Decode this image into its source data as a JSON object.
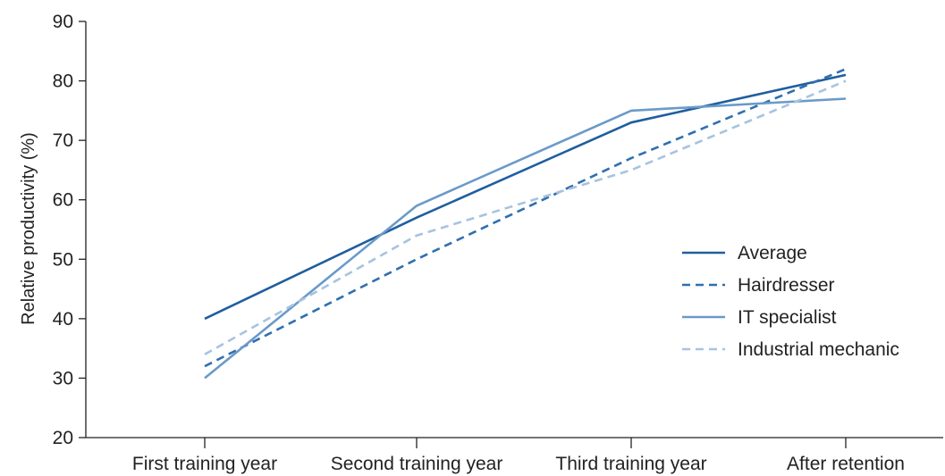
{
  "chart_data": {
    "type": "line",
    "title": "",
    "xlabel": "",
    "ylabel": "Relative productivity (%)",
    "ylim": [
      20,
      90
    ],
    "yticks": [
      20,
      30,
      40,
      50,
      60,
      70,
      80,
      90
    ],
    "categories": [
      "First training year",
      "Second training year",
      "Third training year",
      "After retention"
    ],
    "grid": false,
    "legend_position": "right",
    "series": [
      {
        "name": "Average",
        "values": [
          40,
          57,
          73,
          81
        ],
        "color": "#1f5e9e",
        "dash": "solid"
      },
      {
        "name": "Hairdresser",
        "values": [
          32,
          50,
          67,
          82
        ],
        "color": "#2f6fb0",
        "dash": "dashed"
      },
      {
        "name": "IT specialist",
        "values": [
          30,
          59,
          75,
          77
        ],
        "color": "#6a9ac9",
        "dash": "solid"
      },
      {
        "name": "Industrial mechanic",
        "values": [
          34,
          54,
          65,
          80
        ],
        "color": "#a7c3e0",
        "dash": "dashed"
      }
    ]
  }
}
